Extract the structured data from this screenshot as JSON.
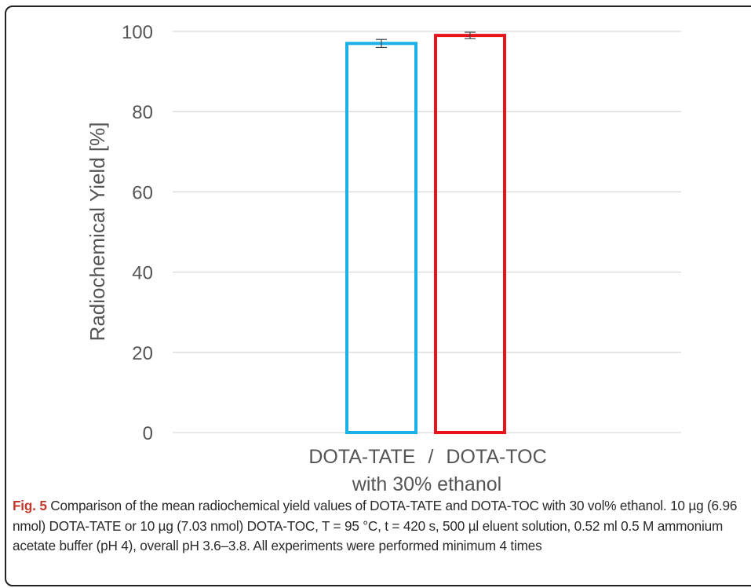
{
  "chart_data": {
    "type": "bar",
    "categories": [
      "DOTA-TATE",
      "DOTA-TOC"
    ],
    "values": [
      97,
      99
    ],
    "error": [
      1,
      0.8
    ],
    "ylabel": "Radiochemical Yield [%]",
    "ylim": [
      0,
      100
    ],
    "yticks": [
      "0",
      "20",
      "40",
      "60",
      "80",
      "100"
    ],
    "xlabel_line1_left": "DOTA-TATE",
    "xlabel_line1_sep": "/",
    "xlabel_line1_right": "DOTA-TOC",
    "xlabel_line2": "with 30% ethanol",
    "colors": [
      "#1ab0e8",
      "#e8131b"
    ],
    "grid": true,
    "bar_fill": "none"
  },
  "caption": {
    "label": "Fig. 5",
    "text": " Comparison of the mean radiochemical yield values of DOTA-TATE and DOTA-TOC with 30 vol% ethanol. 10 µg (6.96 nmol) DOTA-TATE or 10 µg (7.03 nmol) DOTA-TOC, T = 95 °C, t = 420 s, 500 µl eluent solution, 0.52 ml 0.5 M ammonium acetate buffer (pH 4), overall pH 3.6–3.8. All experiments were performed minimum 4 times"
  }
}
